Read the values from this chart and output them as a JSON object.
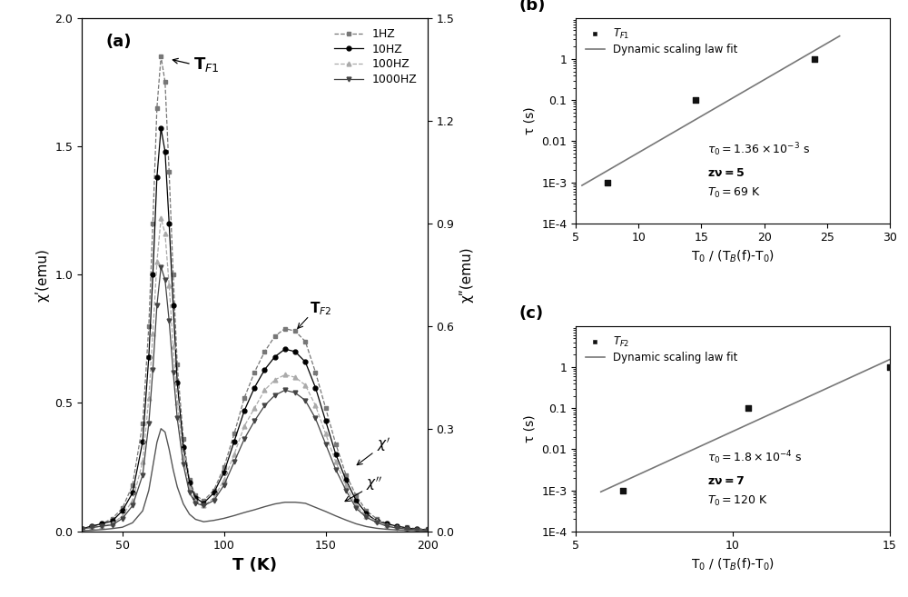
{
  "fig_width": 10.0,
  "fig_height": 6.57,
  "bg_color": "#ffffff",
  "panel_a": {
    "label": "(a)",
    "xlabel": "T (K)",
    "ylabel_left": "χʹ(emu)",
    "ylabel_right": "χʺ(emu)",
    "xlim": [
      30,
      200
    ],
    "ylim_left": [
      0,
      2.0
    ],
    "ylim_right": [
      0,
      1.5
    ],
    "yticks_left": [
      0.0,
      0.5,
      1.0,
      1.5,
      2.0
    ],
    "yticks_right": [
      0.0,
      0.3,
      0.6,
      0.9,
      1.2,
      1.5
    ],
    "xticks": [
      50,
      100,
      150,
      200
    ],
    "series_1hz": {
      "T": [
        30,
        35,
        40,
        45,
        50,
        55,
        60,
        63,
        65,
        67,
        69,
        71,
        73,
        75,
        77,
        80,
        83,
        86,
        90,
        95,
        100,
        105,
        110,
        115,
        120,
        125,
        130,
        135,
        140,
        145,
        150,
        155,
        160,
        165,
        170,
        175,
        180,
        185,
        190,
        195,
        200
      ],
      "chi": [
        0.01,
        0.02,
        0.03,
        0.05,
        0.09,
        0.18,
        0.42,
        0.8,
        1.2,
        1.65,
        1.85,
        1.75,
        1.4,
        1.0,
        0.65,
        0.36,
        0.2,
        0.14,
        0.12,
        0.16,
        0.25,
        0.38,
        0.52,
        0.62,
        0.7,
        0.76,
        0.79,
        0.78,
        0.74,
        0.62,
        0.48,
        0.34,
        0.22,
        0.14,
        0.08,
        0.05,
        0.03,
        0.02,
        0.015,
        0.01,
        0.008
      ],
      "color": "#777777",
      "linestyle": "--",
      "marker": "s",
      "markersize": 3.5,
      "label": "1HZ"
    },
    "series_10hz": {
      "T": [
        30,
        35,
        40,
        45,
        50,
        55,
        60,
        63,
        65,
        67,
        69,
        71,
        73,
        75,
        77,
        80,
        83,
        86,
        90,
        95,
        100,
        105,
        110,
        115,
        120,
        125,
        130,
        135,
        140,
        145,
        150,
        155,
        160,
        165,
        170,
        175,
        180,
        185,
        190,
        195,
        200
      ],
      "chi": [
        0.01,
        0.02,
        0.03,
        0.04,
        0.08,
        0.15,
        0.35,
        0.68,
        1.0,
        1.38,
        1.57,
        1.48,
        1.2,
        0.88,
        0.58,
        0.33,
        0.19,
        0.13,
        0.11,
        0.15,
        0.23,
        0.35,
        0.47,
        0.56,
        0.63,
        0.68,
        0.71,
        0.7,
        0.66,
        0.56,
        0.43,
        0.3,
        0.2,
        0.12,
        0.07,
        0.04,
        0.03,
        0.02,
        0.012,
        0.009,
        0.006
      ],
      "color": "#000000",
      "linestyle": "-",
      "marker": "o",
      "markersize": 3.5,
      "label": "10HZ"
    },
    "series_100hz": {
      "T": [
        30,
        35,
        40,
        45,
        50,
        55,
        60,
        63,
        65,
        67,
        69,
        71,
        73,
        75,
        77,
        80,
        83,
        86,
        90,
        95,
        100,
        105,
        110,
        115,
        120,
        125,
        130,
        135,
        140,
        145,
        150,
        155,
        160,
        165,
        170,
        175,
        180,
        185,
        190,
        195,
        200
      ],
      "chi": [
        0.01,
        0.015,
        0.02,
        0.03,
        0.06,
        0.12,
        0.27,
        0.52,
        0.77,
        1.05,
        1.22,
        1.16,
        0.96,
        0.72,
        0.5,
        0.29,
        0.17,
        0.12,
        0.1,
        0.13,
        0.2,
        0.3,
        0.41,
        0.48,
        0.55,
        0.59,
        0.61,
        0.6,
        0.57,
        0.49,
        0.38,
        0.27,
        0.18,
        0.1,
        0.06,
        0.04,
        0.025,
        0.015,
        0.01,
        0.007,
        0.005
      ],
      "color": "#aaaaaa",
      "linestyle": "--",
      "marker": "^",
      "markersize": 3.5,
      "label": "100HZ"
    },
    "series_1000hz": {
      "T": [
        30,
        35,
        40,
        45,
        50,
        55,
        60,
        63,
        65,
        67,
        69,
        71,
        73,
        75,
        77,
        80,
        83,
        86,
        90,
        95,
        100,
        105,
        110,
        115,
        120,
        125,
        130,
        135,
        140,
        145,
        150,
        155,
        160,
        165,
        170,
        175,
        180,
        185,
        190,
        195,
        200
      ],
      "chi": [
        0.01,
        0.015,
        0.02,
        0.025,
        0.05,
        0.1,
        0.22,
        0.42,
        0.63,
        0.88,
        1.03,
        0.98,
        0.82,
        0.62,
        0.44,
        0.26,
        0.15,
        0.11,
        0.1,
        0.12,
        0.18,
        0.27,
        0.36,
        0.43,
        0.49,
        0.53,
        0.55,
        0.54,
        0.51,
        0.44,
        0.34,
        0.24,
        0.16,
        0.09,
        0.055,
        0.035,
        0.02,
        0.013,
        0.009,
        0.006,
        0.004
      ],
      "color": "#444444",
      "linestyle": "-",
      "marker": "v",
      "markersize": 3.5,
      "label": "1000HZ"
    },
    "chi_dbl": {
      "T": [
        30,
        35,
        40,
        45,
        50,
        55,
        60,
        63,
        65,
        67,
        69,
        71,
        73,
        75,
        77,
        80,
        83,
        86,
        90,
        95,
        100,
        105,
        110,
        115,
        120,
        125,
        130,
        135,
        140,
        145,
        150,
        155,
        160,
        165,
        170,
        175,
        180,
        185,
        190,
        195,
        200
      ],
      "chi_right": [
        0.002,
        0.003,
        0.005,
        0.008,
        0.012,
        0.025,
        0.06,
        0.12,
        0.19,
        0.26,
        0.3,
        0.29,
        0.24,
        0.18,
        0.13,
        0.08,
        0.05,
        0.035,
        0.028,
        0.032,
        0.038,
        0.046,
        0.055,
        0.063,
        0.072,
        0.08,
        0.085,
        0.085,
        0.082,
        0.07,
        0.058,
        0.045,
        0.033,
        0.022,
        0.014,
        0.009,
        0.006,
        0.004,
        0.003,
        0.002,
        0.001
      ],
      "color": "#555555",
      "linestyle": "-",
      "linewidth": 1.0
    }
  },
  "panel_b": {
    "label": "(b)",
    "xlabel": "T$_0$ / (T$_B$(f)-T$_0$)",
    "ylabel": "τ (s)",
    "xlim": [
      5,
      30
    ],
    "ylim": [
      0.0001,
      10
    ],
    "xticks": [
      5,
      10,
      15,
      20,
      25,
      30
    ],
    "data_x": [
      7.5,
      14.5,
      24.0
    ],
    "data_y": [
      0.001,
      0.1,
      1.0
    ],
    "fit_x_start": 5.5,
    "fit_x_end": 26.0,
    "marker_color": "#111111",
    "line_color": "#777777",
    "ann_tau0": "$\\tau_0 = 1.36\\times10^{-3}$ s",
    "ann_zv": "$\\mathbf{z\\nu = 5}$",
    "ann_T0": "$T_0 = 69$ K"
  },
  "panel_c": {
    "label": "(c)",
    "xlabel": "T$_0$ / (T$_B$(f)-T$_0$)",
    "ylabel": "τ (s)",
    "xlim": [
      5,
      15
    ],
    "ylim": [
      0.0001,
      10
    ],
    "xticks": [
      5,
      10,
      15
    ],
    "data_x": [
      6.5,
      10.5,
      15.0
    ],
    "data_y": [
      0.001,
      0.1,
      1.0
    ],
    "fit_x_start": 5.8,
    "fit_x_end": 15.5,
    "marker_color": "#111111",
    "line_color": "#777777",
    "ann_tau0": "$\\tau_0 = 1.8\\times10^{-4}$ s",
    "ann_zv": "$\\mathbf{z\\nu = 7}$",
    "ann_T0": "$T_0 = 120$ K"
  }
}
